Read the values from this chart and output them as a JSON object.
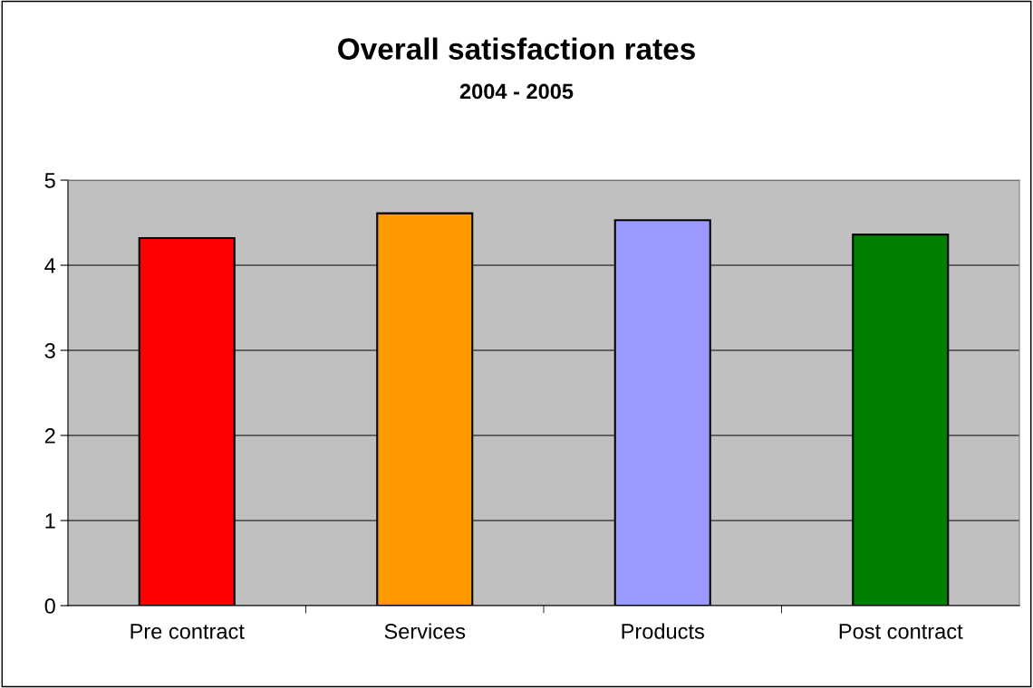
{
  "chart_data": {
    "type": "bar",
    "title": "Overall satisfaction rates",
    "subtitle": "2004 - 2005",
    "categories": [
      "Pre contract",
      "Services",
      "Products",
      "Post contract"
    ],
    "values": [
      4.32,
      4.61,
      4.53,
      4.36
    ],
    "colors": [
      "#ff0000",
      "#ff9900",
      "#9999ff",
      "#008000"
    ],
    "ylim": [
      0,
      5
    ],
    "yticks": [
      0,
      1,
      2,
      3,
      4,
      5
    ],
    "grid": "y"
  }
}
